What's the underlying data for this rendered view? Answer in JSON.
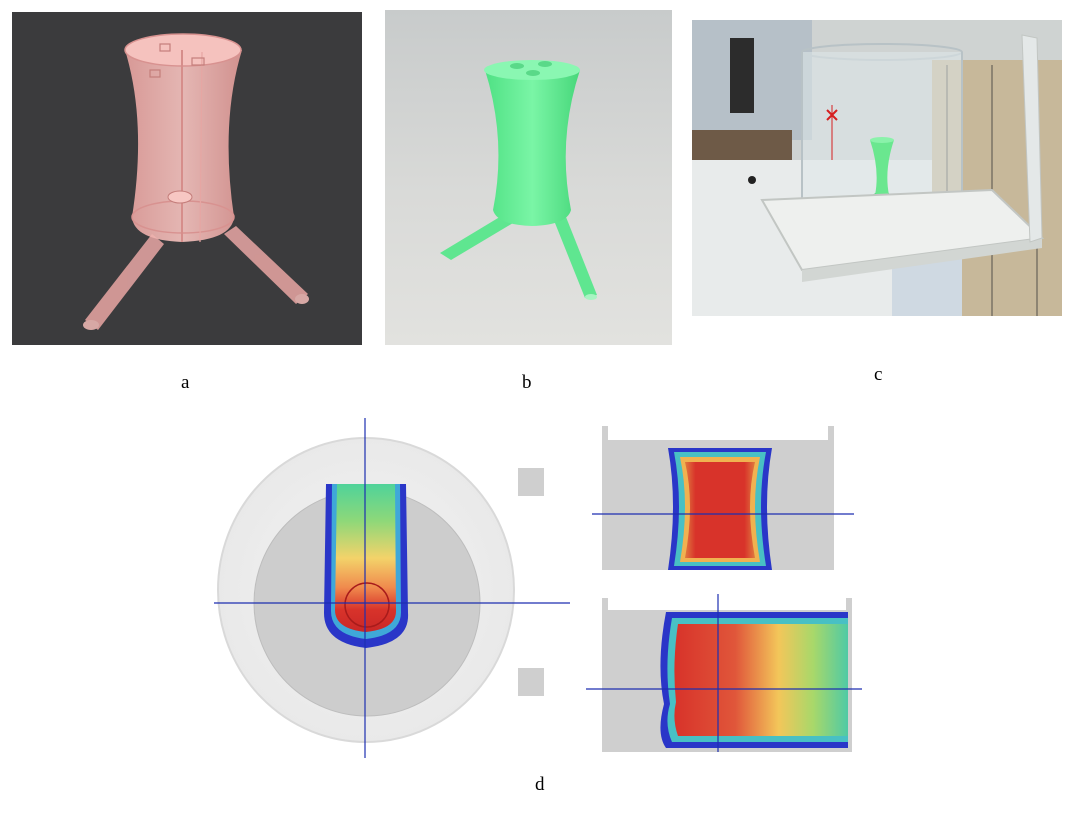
{
  "figure": {
    "panels": [
      {
        "id": "a",
        "label": "a"
      },
      {
        "id": "b",
        "label": "b"
      },
      {
        "id": "c",
        "label": "c"
      },
      {
        "id": "d",
        "label": "d"
      }
    ]
  },
  "colors": {
    "cad_background": "#3b3b3d",
    "cad_model": "#f4b3b0",
    "printed_model": "#6ef29a",
    "crosshair": "#1d2fb0",
    "dose_high": "#d8332a",
    "dose_low": "#2a36c8"
  }
}
